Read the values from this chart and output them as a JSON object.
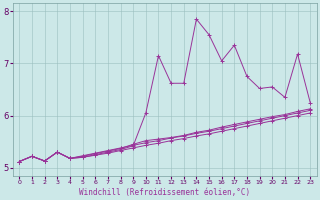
{
  "xlabel": "Windchill (Refroidissement éolien,°C)",
  "background_color": "#cce8e8",
  "line_color": "#993399",
  "xlim": [
    -0.5,
    23.5
  ],
  "ylim": [
    4.85,
    8.15
  ],
  "yticks": [
    5,
    6,
    7,
    8
  ],
  "xticks": [
    0,
    1,
    2,
    3,
    4,
    5,
    6,
    7,
    8,
    9,
    10,
    11,
    12,
    13,
    14,
    15,
    16,
    17,
    18,
    19,
    20,
    21,
    22,
    23
  ],
  "lines": [
    {
      "x": [
        0,
        1,
        2,
        3,
        4,
        5,
        6,
        7,
        8,
        9,
        10,
        11,
        12,
        13,
        14,
        15,
        16,
        17,
        18,
        19,
        20,
        21,
        22,
        23
      ],
      "y": [
        5.12,
        5.22,
        5.13,
        5.3,
        5.18,
        5.2,
        5.25,
        5.3,
        5.35,
        5.42,
        6.05,
        7.15,
        6.62,
        6.62,
        7.85,
        7.55,
        7.05,
        7.35,
        6.75,
        6.52,
        6.55,
        6.35,
        7.18,
        6.25
      ]
    },
    {
      "x": [
        0,
        1,
        2,
        3,
        4,
        5,
        6,
        7,
        8,
        9,
        10,
        11,
        12,
        13,
        14,
        15,
        16,
        17,
        18,
        19,
        20,
        21,
        22,
        23
      ],
      "y": [
        5.12,
        5.22,
        5.13,
        5.3,
        5.18,
        5.22,
        5.27,
        5.32,
        5.37,
        5.45,
        5.52,
        5.55,
        5.58,
        5.62,
        5.68,
        5.72,
        5.78,
        5.83,
        5.88,
        5.93,
        5.98,
        6.02,
        6.08,
        6.13
      ]
    },
    {
      "x": [
        0,
        1,
        2,
        3,
        4,
        5,
        6,
        7,
        8,
        9,
        10,
        11,
        12,
        13,
        14,
        15,
        16,
        17,
        18,
        19,
        20,
        21,
        22,
        23
      ],
      "y": [
        5.12,
        5.22,
        5.13,
        5.3,
        5.18,
        5.23,
        5.28,
        5.33,
        5.38,
        5.43,
        5.48,
        5.52,
        5.57,
        5.61,
        5.66,
        5.7,
        5.75,
        5.8,
        5.85,
        5.9,
        5.95,
        6.0,
        6.05,
        6.1
      ]
    },
    {
      "x": [
        0,
        1,
        2,
        3,
        4,
        5,
        6,
        7,
        8,
        9,
        10,
        11,
        12,
        13,
        14,
        15,
        16,
        17,
        18,
        19,
        20,
        21,
        22,
        23
      ],
      "y": [
        5.12,
        5.22,
        5.13,
        5.3,
        5.18,
        5.2,
        5.24,
        5.28,
        5.33,
        5.38,
        5.43,
        5.47,
        5.52,
        5.56,
        5.61,
        5.65,
        5.7,
        5.75,
        5.8,
        5.85,
        5.9,
        5.95,
        6.0,
        6.05
      ]
    }
  ]
}
